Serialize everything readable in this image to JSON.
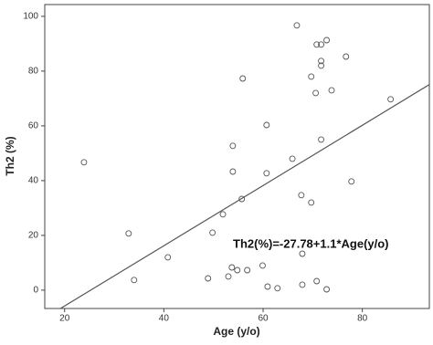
{
  "chart_data": {
    "type": "scatter",
    "x_label": "Age (y/o)",
    "y_label": "Th2 (%)",
    "annotation": "Th2(%)=-27.78+1.1*Age(y/o)",
    "fit": {
      "intercept": -27.78,
      "slope": 1.1
    },
    "xlim": [
      16,
      93.5
    ],
    "ylim": [
      -6.7,
      104.3
    ],
    "xticks": [
      20,
      40,
      60,
      80
    ],
    "yticks": [
      0,
      20,
      40,
      60,
      80,
      100
    ],
    "color": "#555555",
    "x": [
      23.9,
      32.9,
      34.0,
      40.8,
      48.9,
      49.8,
      51.9,
      53.0,
      53.7,
      53.9,
      53.9,
      54.8,
      55.7,
      55.9,
      56.8,
      59.9,
      60.7,
      60.7,
      60.9,
      62.9,
      65.9,
      66.8,
      67.7,
      67.9,
      67.9,
      69.7,
      69.7,
      70.6,
      70.8,
      70.8,
      71.7,
      71.7,
      71.7,
      71.7,
      72.8,
      72.8,
      73.8,
      76.7,
      77.8,
      85.7
    ],
    "values": [
      46.7,
      20.7,
      3.7,
      12,
      4.3,
      21,
      27.7,
      5,
      8.3,
      52.7,
      43.3,
      7.3,
      33.3,
      77.3,
      7.3,
      9,
      60.3,
      42.7,
      1.3,
      0.7,
      48,
      96.7,
      34.7,
      13.3,
      2,
      78,
      32,
      72,
      89.7,
      3.3,
      89.7,
      55,
      82,
      83.7,
      91.3,
      0.3,
      73,
      85.3,
      39.7,
      69.7
    ]
  }
}
